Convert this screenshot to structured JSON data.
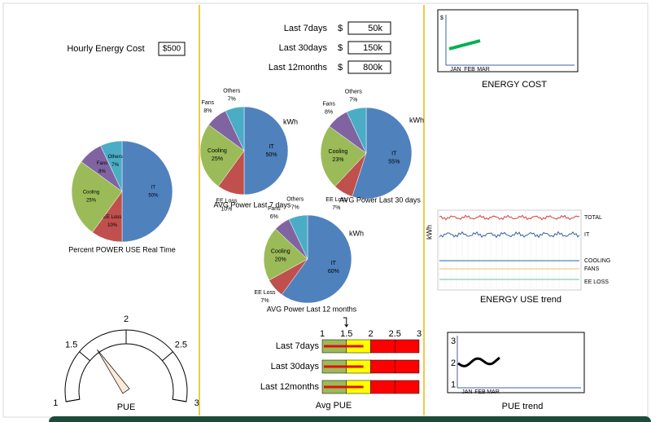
{
  "hourly_cost": {
    "label": "Hourly Energy Cost",
    "value": "$500"
  },
  "cost_summary": {
    "currency": "$",
    "rows": [
      {
        "period": "Last 7days",
        "value": "50k"
      },
      {
        "period": "Last 30days",
        "value": "150k"
      },
      {
        "period": "Last 12months",
        "value": "800k"
      }
    ]
  },
  "pies": [
    {
      "title": "Percent POWER USE Real Time",
      "categories": [
        "IT",
        "EE Loss",
        "Cooling",
        "Fans",
        "Others"
      ],
      "values": [
        50,
        10,
        25,
        8,
        7
      ],
      "value_labels": [
        "50%",
        "10%",
        "25%",
        "8%",
        "7%"
      ],
      "colors": [
        "#4f81bd",
        "#c0504d",
        "#9bbb59",
        "#8064a2",
        "#4bacc6"
      ]
    },
    {
      "title": "AVG Power Last 7 days",
      "unit": "kWh",
      "categories": [
        "IT",
        "EE Loss",
        "Cooling",
        "Fans",
        "Others"
      ],
      "values": [
        50,
        10,
        25,
        8,
        7
      ],
      "value_labels": [
        "50%",
        "10%",
        "25%",
        "8%",
        "7%"
      ],
      "colors": [
        "#4f81bd",
        "#c0504d",
        "#9bbb59",
        "#8064a2",
        "#4bacc6"
      ]
    },
    {
      "title": "AVG Power Last 30 days",
      "unit": "kWh",
      "categories": [
        "IT",
        "EE Loss",
        "Cooling",
        "Fans",
        "Others"
      ],
      "values": [
        55,
        7,
        23,
        8,
        7
      ],
      "value_labels": [
        "55%",
        "7%",
        "23%",
        "8%",
        "7%"
      ],
      "colors": [
        "#4f81bd",
        "#c0504d",
        "#9bbb59",
        "#8064a2",
        "#4bacc6"
      ]
    },
    {
      "title": "AVG Power Last 12 months",
      "unit": "kWh",
      "categories": [
        "IT",
        "EE Loss",
        "Cooling",
        "Fans",
        "Others"
      ],
      "values": [
        60,
        7,
        20,
        6,
        7
      ],
      "value_labels": [
        "60%",
        "7%",
        "20%",
        "6%",
        "7%"
      ],
      "colors": [
        "#4f81bd",
        "#c0504d",
        "#9bbb59",
        "#8064a2",
        "#4bacc6"
      ]
    }
  ],
  "energy_cost": {
    "title": "ENERGY COST",
    "y_label": "$",
    "categories": [
      "JAN",
      "FEB",
      "MAR"
    ],
    "line_color": "#00b050"
  },
  "energy_use": {
    "title": "ENERGY USE trend",
    "y_label": "kWh",
    "series": [
      {
        "name": "TOTAL",
        "color": "#d04040"
      },
      {
        "name": "IT",
        "color": "#3a5ea8"
      },
      {
        "name": "COOLING",
        "color": "#1f6fa8"
      },
      {
        "name": "FANS",
        "color": "#f0c060"
      },
      {
        "name": "EE LOSS",
        "color": "#6fc0a0"
      }
    ]
  },
  "pue_gauge": {
    "label": "PUE",
    "ticks": [
      1,
      1.5,
      2,
      2.5,
      3
    ],
    "value": 1.65
  },
  "avg_pue": {
    "title": "Avg PUE",
    "ticks": [
      1,
      1.5,
      2,
      2.5,
      3
    ],
    "marker": 1.5,
    "band_colors": [
      "#9bbb59",
      "#ffff00",
      "#ff0000",
      "#ff0000"
    ],
    "rows": [
      {
        "period": "Last 7days",
        "value": 1.85
      },
      {
        "period": "Last 30days",
        "value": 1.85
      },
      {
        "period": "Last 12months",
        "value": 1.85
      }
    ]
  },
  "pue_trend": {
    "title": "PUE trend",
    "yticks": [
      1,
      2,
      3
    ],
    "ylim": [
      0.8,
      3.2
    ],
    "categories": [
      "JAN",
      "FEB",
      "MAR"
    ]
  }
}
